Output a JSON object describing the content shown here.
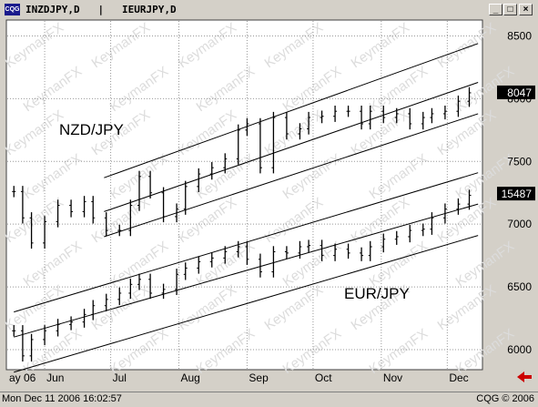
{
  "window": {
    "title": "INZDJPY,D   |   IEURJPY,D",
    "icon_label": "CQG",
    "buttons": {
      "minimize": "_",
      "maximize": "□",
      "close": "×"
    }
  },
  "status_bar": {
    "datetime": "Mon Dec 11 2006 16:02:57",
    "copyright": "CQG © 2006"
  },
  "watermark": "KeymanFX",
  "nav_arrow_icon": "left-arrow-icon",
  "colors": {
    "chart_bg": "#ffffff",
    "grid": "#999999",
    "bars": "#000000",
    "last_price_bg": "#000000",
    "arrow": "#cc0000"
  },
  "chart_data": {
    "type": "line",
    "subtype": "ohlc-bar",
    "y_axis": {
      "ticks": [
        6000,
        6500,
        7000,
        7500,
        8000,
        8500
      ],
      "range": [
        5840,
        8620
      ],
      "position": "right"
    },
    "x_axis": {
      "tick_labels": [
        "ay 06",
        "Jun",
        "Jul",
        "Aug",
        "Sep",
        "Oct",
        "Nov",
        "Dec"
      ],
      "range_months": [
        "2006-05",
        "2006-12"
      ]
    },
    "grid": true,
    "annotations": [
      {
        "text": "NZD/JPY"
      },
      {
        "text": "EUR/JPY"
      }
    ],
    "last_price_labels": [
      "8047",
      "15487"
    ],
    "series": [
      {
        "name": "NZD/JPY",
        "x": [
          "2006-05-18",
          "2006-05-22",
          "2006-05-26",
          "2006-06-01",
          "2006-06-07",
          "2006-06-13",
          "2006-06-19",
          "2006-06-23",
          "2006-06-29",
          "2006-07-05",
          "2006-07-10",
          "2006-07-14",
          "2006-07-19",
          "2006-07-25",
          "2006-07-31",
          "2006-08-04",
          "2006-08-10",
          "2006-08-16",
          "2006-08-22",
          "2006-08-28",
          "2006-09-01",
          "2006-09-07",
          "2006-09-13",
          "2006-09-19",
          "2006-09-25",
          "2006-09-29",
          "2006-10-05",
          "2006-10-11",
          "2006-10-17",
          "2006-10-23",
          "2006-10-27",
          "2006-11-02",
          "2006-11-08",
          "2006-11-14",
          "2006-11-20",
          "2006-11-24",
          "2006-11-30",
          "2006-12-06",
          "2006-12-11"
        ],
        "close": [
          7260,
          7050,
          6850,
          7020,
          7150,
          7100,
          7180,
          7050,
          6950,
          6950,
          7150,
          7380,
          7250,
          7060,
          7120,
          7300,
          7400,
          7450,
          7520,
          7750,
          7800,
          7450,
          7850,
          7720,
          7760,
          7850,
          7860,
          7900,
          7900,
          7800,
          7900,
          7850,
          7880,
          7800,
          7850,
          7880,
          7900,
          7980,
          8047
        ]
      },
      {
        "name": "EUR/JPY",
        "x": [
          "2006-05-18",
          "2006-05-22",
          "2006-05-26",
          "2006-06-01",
          "2006-06-07",
          "2006-06-13",
          "2006-06-19",
          "2006-06-23",
          "2006-06-29",
          "2006-07-05",
          "2006-07-10",
          "2006-07-14",
          "2006-07-19",
          "2006-07-25",
          "2006-07-31",
          "2006-08-04",
          "2006-08-10",
          "2006-08-16",
          "2006-08-22",
          "2006-08-28",
          "2006-09-01",
          "2006-09-07",
          "2006-09-13",
          "2006-09-19",
          "2006-09-25",
          "2006-09-29",
          "2006-10-05",
          "2006-10-11",
          "2006-10-17",
          "2006-10-23",
          "2006-10-27",
          "2006-11-02",
          "2006-11-08",
          "2006-11-14",
          "2006-11-20",
          "2006-11-24",
          "2006-11-30",
          "2006-12-06",
          "2006-12-11"
        ],
        "close": [
          6150,
          5950,
          6080,
          6150,
          6200,
          6220,
          6280,
          6350,
          6400,
          6450,
          6520,
          6560,
          6450,
          6480,
          6600,
          6650,
          6700,
          6730,
          6780,
          6820,
          6720,
          6620,
          6780,
          6770,
          6820,
          6830,
          6750,
          6800,
          6770,
          6750,
          6820,
          6880,
          6900,
          6950,
          6960,
          7050,
          7120,
          7160,
          7230
        ]
      }
    ],
    "channels": [
      {
        "name": "NZD/JPY",
        "upper": [
          [
            "2006-06-28",
            7370
          ],
          [
            "2006-12-15",
            8440
          ]
        ],
        "mid": [
          [
            "2006-06-28",
            7100
          ],
          [
            "2006-12-15",
            8130
          ]
        ],
        "lower": [
          [
            "2006-06-28",
            6900
          ],
          [
            "2006-12-15",
            7880
          ]
        ]
      },
      {
        "name": "EUR/JPY",
        "upper": [
          [
            "2006-05-18",
            6300
          ],
          [
            "2006-12-15",
            7410
          ]
        ],
        "mid": [
          [
            "2006-05-18",
            6100
          ],
          [
            "2006-12-15",
            7160
          ]
        ],
        "lower": [
          [
            "2006-05-18",
            5820
          ],
          [
            "2006-12-15",
            6910
          ]
        ]
      }
    ]
  }
}
